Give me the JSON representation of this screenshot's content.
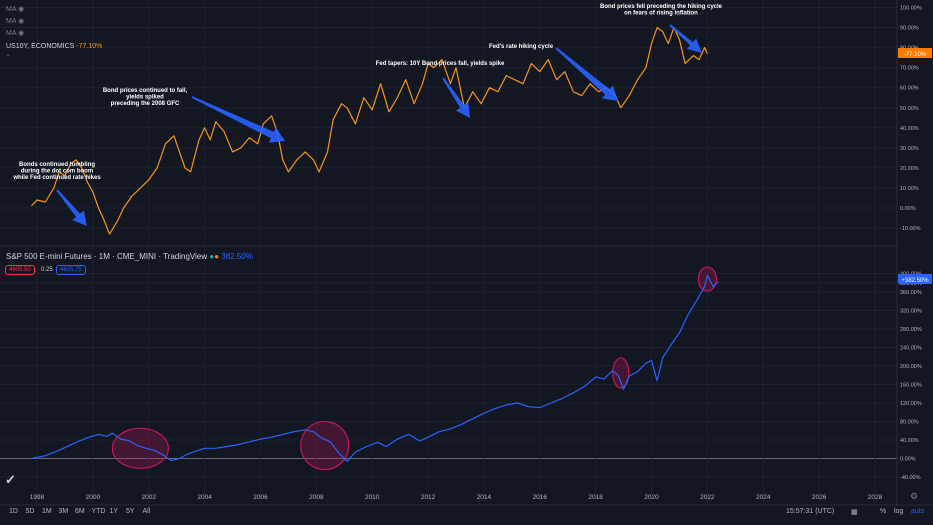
{
  "indicators": [
    "MA",
    "MA",
    "MA"
  ],
  "top_legend": {
    "symbol": "US10Y, ECONOMICS",
    "change": "-77.10%"
  },
  "bottom_legend": {
    "symbol": "S&P 500 E-mini Futures · 1M · CME_MINI · TradingView",
    "change": "382.50%",
    "bid": "4605.50",
    "spread": "0.25",
    "ask": "4605.75"
  },
  "colors": {
    "bg": "#131722",
    "orange": "#f7931a",
    "blue": "#2962ff",
    "accent": "#ff7b00",
    "ellipse": "#c2185b",
    "arrow": "#2962ff"
  },
  "top_badge": "-77.10%",
  "bottom_badge": "+382.50%",
  "chart_data": [
    {
      "type": "line",
      "series": [
        {
          "values": [
            [
              1997.8,
              1
            ],
            [
              1998.0,
              4
            ],
            [
              1998.3,
              3
            ],
            [
              1998.6,
              10
            ],
            [
              1998.8,
              18
            ],
            [
              1999.0,
              16
            ],
            [
              1999.2,
              22
            ],
            [
              1999.4,
              24
            ],
            [
              1999.6,
              20
            ],
            [
              1999.8,
              13
            ],
            [
              2000.0,
              8
            ],
            [
              2000.2,
              0
            ],
            [
              2000.4,
              -6
            ],
            [
              2000.6,
              -13
            ],
            [
              2000.9,
              -6
            ],
            [
              2001.1,
              0
            ],
            [
              2001.4,
              6
            ],
            [
              2001.7,
              10
            ],
            [
              2002.0,
              14
            ],
            [
              2002.3,
              20
            ],
            [
              2002.6,
              32
            ],
            [
              2002.9,
              36
            ],
            [
              2003.1,
              28
            ],
            [
              2003.3,
              20
            ],
            [
              2003.5,
              18
            ],
            [
              2003.8,
              34
            ],
            [
              2004.0,
              40
            ],
            [
              2004.2,
              34
            ],
            [
              2004.4,
              43
            ],
            [
              2004.7,
              38
            ],
            [
              2005.0,
              28
            ],
            [
              2005.3,
              30
            ],
            [
              2005.6,
              35
            ],
            [
              2005.9,
              32
            ],
            [
              2006.1,
              42
            ],
            [
              2006.4,
              46
            ],
            [
              2006.6,
              38
            ],
            [
              2006.8,
              24
            ],
            [
              2007.0,
              18
            ],
            [
              2007.3,
              24
            ],
            [
              2007.6,
              28
            ],
            [
              2007.9,
              24
            ],
            [
              2008.1,
              18
            ],
            [
              2008.4,
              28
            ],
            [
              2008.6,
              44
            ],
            [
              2008.9,
              52
            ],
            [
              2009.1,
              50
            ],
            [
              2009.4,
              42
            ],
            [
              2009.7,
              55
            ],
            [
              2010.0,
              49
            ],
            [
              2010.3,
              62
            ],
            [
              2010.6,
              48
            ],
            [
              2010.9,
              55
            ],
            [
              2011.2,
              64
            ],
            [
              2011.5,
              52
            ],
            [
              2011.8,
              62
            ],
            [
              2012.0,
              72
            ],
            [
              2012.2,
              70
            ],
            [
              2012.5,
              74
            ],
            [
              2012.8,
              62
            ],
            [
              2013.0,
              70
            ],
            [
              2013.3,
              50
            ],
            [
              2013.6,
              58
            ],
            [
              2013.9,
              52
            ],
            [
              2014.2,
              60
            ],
            [
              2014.5,
              58
            ],
            [
              2014.8,
              66
            ],
            [
              2015.1,
              64
            ],
            [
              2015.4,
              62
            ],
            [
              2015.7,
              72
            ],
            [
              2016.0,
              68
            ],
            [
              2016.3,
              74
            ],
            [
              2016.6,
              64
            ],
            [
              2016.9,
              68
            ],
            [
              2017.2,
              58
            ],
            [
              2017.5,
              56
            ],
            [
              2017.8,
              62
            ],
            [
              2018.1,
              58
            ],
            [
              2018.4,
              60
            ],
            [
              2018.7,
              56
            ],
            [
              2018.9,
              50
            ],
            [
              2019.2,
              56
            ],
            [
              2019.5,
              64
            ],
            [
              2019.8,
              70
            ],
            [
              2020.0,
              82
            ],
            [
              2020.2,
              90
            ],
            [
              2020.4,
              88
            ],
            [
              2020.6,
              82
            ],
            [
              2020.8,
              90
            ],
            [
              2021.0,
              84
            ],
            [
              2021.2,
              72
            ],
            [
              2021.5,
              76
            ],
            [
              2021.7,
              74
            ],
            [
              2021.9,
              80
            ],
            [
              2022.0,
              77
            ]
          ]
        }
      ],
      "y_ticks": [
        "100.00%",
        "90.00%",
        "80.00%",
        "70.00%",
        "60.00%",
        "50.00%",
        "40.00%",
        "30.00%",
        "20.00%",
        "10.00%",
        "0.00%",
        "-10.00%"
      ],
      "annotations": [
        "Bonds continued tumbling during the dot com boom while Fed continued rate hikes",
        "Bond prices continued to fall, yields spiked preceding the 2008 GFC",
        "Fed tapers: 10Y Bond prices fall, yields spike",
        "Fed's rate hiking cycle",
        "Bond prices fell preceding the hiking cycle on fears of rising inflation"
      ]
    },
    {
      "type": "line",
      "series": [
        {
          "values": [
            [
              1997.8,
              0
            ],
            [
              1998.3,
              6
            ],
            [
              1998.8,
              18
            ],
            [
              1999.3,
              32
            ],
            [
              1999.8,
              45
            ],
            [
              2000.2,
              52
            ],
            [
              2000.5,
              48
            ],
            [
              2000.7,
              55
            ],
            [
              2001.0,
              42
            ],
            [
              2001.3,
              38
            ],
            [
              2001.6,
              28
            ],
            [
              2001.9,
              22
            ],
            [
              2002.2,
              18
            ],
            [
              2002.5,
              8
            ],
            [
              2002.8,
              -4
            ],
            [
              2003.1,
              0
            ],
            [
              2003.4,
              10
            ],
            [
              2003.7,
              16
            ],
            [
              2004.0,
              22
            ],
            [
              2004.4,
              22
            ],
            [
              2004.8,
              26
            ],
            [
              2005.2,
              30
            ],
            [
              2005.6,
              36
            ],
            [
              2006.0,
              42
            ],
            [
              2006.4,
              46
            ],
            [
              2006.8,
              52
            ],
            [
              2007.2,
              58
            ],
            [
              2007.6,
              62
            ],
            [
              2007.9,
              58
            ],
            [
              2008.2,
              44
            ],
            [
              2008.5,
              36
            ],
            [
              2008.8,
              12
            ],
            [
              2009.1,
              -6
            ],
            [
              2009.4,
              14
            ],
            [
              2009.8,
              26
            ],
            [
              2010.2,
              35
            ],
            [
              2010.5,
              26
            ],
            [
              2010.9,
              42
            ],
            [
              2011.3,
              52
            ],
            [
              2011.7,
              38
            ],
            [
              2012.0,
              46
            ],
            [
              2012.4,
              58
            ],
            [
              2012.8,
              64
            ],
            [
              2013.2,
              74
            ],
            [
              2013.6,
              86
            ],
            [
              2014.0,
              98
            ],
            [
              2014.4,
              108
            ],
            [
              2014.8,
              116
            ],
            [
              2015.2,
              120
            ],
            [
              2015.6,
              112
            ],
            [
              2016.0,
              110
            ],
            [
              2016.4,
              120
            ],
            [
              2016.8,
              130
            ],
            [
              2017.2,
              142
            ],
            [
              2017.6,
              156
            ],
            [
              2018.0,
              176
            ],
            [
              2018.3,
              172
            ],
            [
              2018.6,
              190
            ],
            [
              2018.8,
              180
            ],
            [
              2019.0,
              150
            ],
            [
              2019.2,
              178
            ],
            [
              2019.5,
              188
            ],
            [
              2019.8,
              206
            ],
            [
              2020.0,
              212
            ],
            [
              2020.2,
              168
            ],
            [
              2020.4,
              218
            ],
            [
              2020.7,
              246
            ],
            [
              2021.0,
              272
            ],
            [
              2021.3,
              310
            ],
            [
              2021.6,
              340
            ],
            [
              2021.9,
              372
            ],
            [
              2022.0,
              396
            ],
            [
              2022.2,
              372
            ],
            [
              2022.4,
              382
            ]
          ]
        }
      ],
      "y_ticks": [
        "400.00%",
        "380.00%",
        "360.00%",
        "320.00%",
        "280.00%",
        "240.00%",
        "200.00%",
        "160.00%",
        "120.00%",
        "80.00%",
        "40.00%",
        "0.00%",
        "-40.00%"
      ],
      "x_ticks": [
        "1998",
        "2000",
        "2002",
        "2004",
        "2006",
        "2008",
        "2010",
        "2012",
        "2014",
        "2016",
        "2018",
        "2020",
        "2022",
        "2024",
        "2026",
        "2028"
      ]
    }
  ],
  "bottom_bar": {
    "ranges": [
      "1D",
      "5D",
      "1M",
      "3M",
      "6M",
      "YTD",
      "1Y",
      "5Y",
      "All"
    ],
    "time": "15:57:31 (UTC)",
    "opts": [
      "%",
      "log",
      "auto"
    ]
  }
}
